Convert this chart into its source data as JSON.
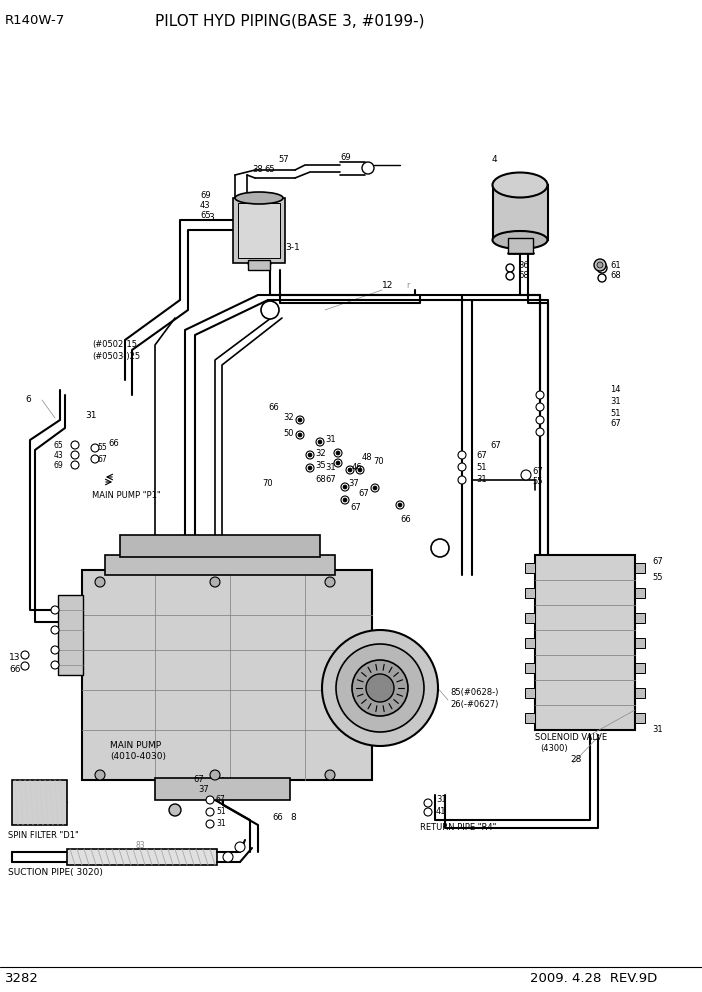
{
  "title": "PILOT HYD PIPING(BASE 3, #0199-)",
  "model": "R140W-7",
  "page": "3282",
  "date": "2009. 4.28  REV.9D",
  "bg_color": "#ffffff",
  "line_color": "#000000",
  "gray_mid": "#aaaaaa",
  "gray_light": "#cccccc",
  "gray_dark": "#888888"
}
